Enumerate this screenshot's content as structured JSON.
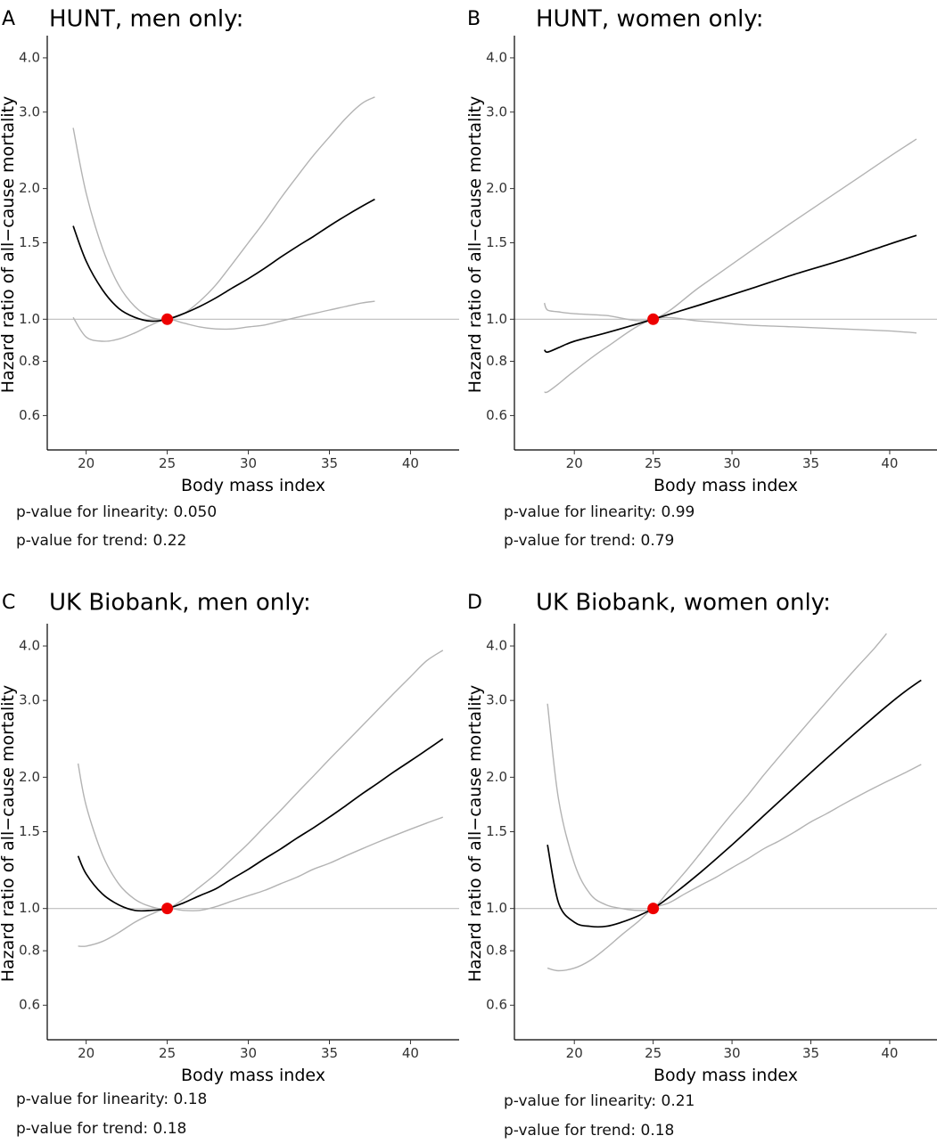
{
  "chart_data": [
    {
      "type": "line",
      "panel_letter": "A",
      "title": "HUNT, men only:",
      "xlabel": "Body mass index",
      "ylabel": "Hazard ratio of all−cause mortality",
      "x_ticks": [
        20,
        25,
        30,
        35,
        40
      ],
      "y_ticks": [
        "0.6",
        "0.8",
        "1.0",
        "1.5",
        "2.0",
        "3.0",
        "4.0"
      ],
      "y_scale": "log",
      "xlim": [
        17.6,
        43.0
      ],
      "ylim": [
        0.5,
        4.5
      ],
      "reference_line_y": 1.0,
      "reference_point": {
        "x": 25,
        "y": 1.0
      },
      "series": [
        {
          "role": "estimate",
          "color": "#000000",
          "x": [
            19.2,
            20,
            21,
            22,
            23,
            24,
            25,
            26,
            27,
            28,
            29,
            30,
            31,
            32,
            33,
            34,
            35,
            36,
            37,
            37.8
          ],
          "y": [
            1.64,
            1.36,
            1.17,
            1.06,
            1.01,
            0.99,
            1.0,
            1.03,
            1.07,
            1.12,
            1.18,
            1.24,
            1.31,
            1.39,
            1.47,
            1.55,
            1.64,
            1.73,
            1.82,
            1.89
          ]
        },
        {
          "role": "upper",
          "color": "#b3b3b3",
          "x": [
            19.2,
            20,
            21,
            22,
            23,
            24,
            25,
            26,
            27,
            28,
            29,
            30,
            31,
            32,
            33,
            34,
            35,
            36,
            37,
            37.8
          ],
          "y": [
            2.76,
            1.95,
            1.46,
            1.2,
            1.07,
            1.01,
            1.0,
            1.03,
            1.1,
            1.2,
            1.34,
            1.5,
            1.68,
            1.9,
            2.13,
            2.38,
            2.63,
            2.9,
            3.14,
            3.25
          ]
        },
        {
          "role": "lower",
          "color": "#b3b3b3",
          "x": [
            19.2,
            20,
            21,
            22,
            23,
            24,
            25,
            26,
            27,
            28,
            29,
            30,
            31,
            32,
            33,
            34,
            35,
            36,
            37,
            37.8
          ],
          "y": [
            1.01,
            0.91,
            0.89,
            0.9,
            0.93,
            0.97,
            1.0,
            0.98,
            0.96,
            0.95,
            0.95,
            0.96,
            0.97,
            0.99,
            1.01,
            1.03,
            1.05,
            1.07,
            1.09,
            1.1
          ]
        }
      ],
      "annotations": [
        "p-value for linearity: 0.050",
        "p-value for trend: 0.22"
      ]
    },
    {
      "type": "line",
      "panel_letter": "B",
      "title": "HUNT, women only:",
      "xlabel": "Body mass index",
      "ylabel": "Hazard ratio of all−cause mortality",
      "x_ticks": [
        20,
        25,
        30,
        35,
        40
      ],
      "y_ticks": [
        "0.6",
        "0.8",
        "1.0",
        "1.5",
        "2.0",
        "3.0",
        "4.0"
      ],
      "y_scale": "log",
      "xlim": [
        16.2,
        43.0
      ],
      "ylim": [
        0.5,
        4.5
      ],
      "reference_line_y": 1.0,
      "reference_point": {
        "x": 25,
        "y": 1.0
      },
      "series": [
        {
          "role": "estimate",
          "color": "#000000",
          "x": [
            18.1,
            18.3,
            19,
            20,
            22,
            25,
            28,
            31,
            34,
            37,
            40,
            41.7
          ],
          "y": [
            0.85,
            0.84,
            0.86,
            0.89,
            0.93,
            1.0,
            1.08,
            1.17,
            1.27,
            1.37,
            1.49,
            1.56
          ]
        },
        {
          "role": "upper",
          "color": "#b3b3b3",
          "x": [
            18.1,
            18.3,
            19,
            20,
            22,
            25,
            28,
            31,
            34,
            37,
            40,
            41.7
          ],
          "y": [
            1.09,
            1.05,
            1.04,
            1.03,
            1.02,
            1.0,
            1.19,
            1.42,
            1.69,
            2.0,
            2.37,
            2.6
          ]
        },
        {
          "role": "lower",
          "color": "#b3b3b3",
          "x": [
            18.1,
            18.3,
            19,
            20,
            22,
            25,
            28,
            31,
            34,
            37,
            40,
            41.7
          ],
          "y": [
            0.68,
            0.68,
            0.71,
            0.76,
            0.86,
            1.0,
            0.99,
            0.97,
            0.96,
            0.95,
            0.94,
            0.93
          ]
        }
      ],
      "annotations": [
        "p-value for linearity: 0.99",
        "p-value for trend: 0.79"
      ]
    },
    {
      "type": "line",
      "panel_letter": "C",
      "title": "UK Biobank, men only:",
      "xlabel": "Body mass index",
      "ylabel": "Hazard ratio of all−cause mortality",
      "x_ticks": [
        20,
        25,
        30,
        35,
        40
      ],
      "y_ticks": [
        "0.6",
        "0.8",
        "1.0",
        "1.5",
        "2.0",
        "3.0",
        "4.0"
      ],
      "y_scale": "log",
      "xlim": [
        17.6,
        43.0
      ],
      "ylim": [
        0.5,
        4.5
      ],
      "reference_line_y": 1.0,
      "reference_point": {
        "x": 25,
        "y": 1.0
      },
      "series": [
        {
          "role": "estimate",
          "color": "#000000",
          "x": [
            19.5,
            20,
            21,
            22,
            23,
            24,
            25,
            26,
            27,
            28,
            29,
            30,
            31,
            32,
            33,
            34,
            35,
            36,
            37,
            38,
            39,
            40,
            41,
            42
          ],
          "y": [
            1.32,
            1.2,
            1.08,
            1.02,
            0.99,
            0.99,
            1.0,
            1.03,
            1.07,
            1.11,
            1.17,
            1.23,
            1.3,
            1.37,
            1.45,
            1.53,
            1.62,
            1.72,
            1.83,
            1.94,
            2.06,
            2.18,
            2.31,
            2.45
          ]
        },
        {
          "role": "upper",
          "color": "#b3b3b3",
          "x": [
            19.5,
            20,
            21,
            22,
            23,
            24,
            25,
            26,
            27,
            28,
            29,
            30,
            31,
            32,
            33,
            34,
            35,
            36,
            37,
            38,
            39,
            40,
            41,
            42
          ],
          "y": [
            2.15,
            1.72,
            1.33,
            1.14,
            1.05,
            1.01,
            1.0,
            1.05,
            1.12,
            1.2,
            1.3,
            1.41,
            1.54,
            1.68,
            1.84,
            2.01,
            2.2,
            2.4,
            2.62,
            2.86,
            3.12,
            3.4,
            3.7,
            3.91
          ]
        },
        {
          "role": "lower",
          "color": "#b3b3b3",
          "x": [
            19.5,
            20,
            21,
            22,
            23,
            24,
            25,
            26,
            27,
            28,
            29,
            30,
            31,
            32,
            33,
            34,
            35,
            36,
            37,
            38,
            39,
            40,
            41,
            42
          ],
          "y": [
            0.82,
            0.82,
            0.84,
            0.88,
            0.93,
            0.97,
            1.0,
            0.99,
            0.99,
            1.01,
            1.04,
            1.07,
            1.1,
            1.14,
            1.18,
            1.23,
            1.27,
            1.32,
            1.37,
            1.42,
            1.47,
            1.52,
            1.57,
            1.62
          ]
        }
      ],
      "annotations": [
        "p-value for linearity: 0.18",
        "p-value for trend: 0.18"
      ]
    },
    {
      "type": "line",
      "panel_letter": "D",
      "title": "UK Biobank, women only:",
      "xlabel": "Body mass index",
      "ylabel": "Hazard ratio of all−cause mortality",
      "x_ticks": [
        20,
        25,
        30,
        35,
        40
      ],
      "y_ticks": [
        "0.6",
        "0.8",
        "1.0",
        "1.5",
        "2.0",
        "3.0",
        "4.0"
      ],
      "y_scale": "log",
      "xlim": [
        16.2,
        43.0
      ],
      "ylim": [
        0.5,
        4.5
      ],
      "reference_line_y": 1.0,
      "reference_point": {
        "x": 25,
        "y": 1.0
      },
      "series": [
        {
          "role": "estimate",
          "color": "#000000",
          "x": [
            18.3,
            19,
            20,
            21,
            22,
            23,
            24,
            25,
            26,
            27,
            28,
            29,
            30,
            31,
            32,
            33,
            34,
            35,
            36,
            37,
            38,
            39,
            40,
            41,
            42
          ],
          "y": [
            1.4,
            1.03,
            0.93,
            0.91,
            0.91,
            0.93,
            0.96,
            1.0,
            1.06,
            1.13,
            1.21,
            1.3,
            1.4,
            1.51,
            1.63,
            1.76,
            1.9,
            2.05,
            2.21,
            2.38,
            2.56,
            2.75,
            2.95,
            3.15,
            3.34
          ]
        },
        {
          "role": "upper",
          "color": "#b3b3b3",
          "x": [
            18.3,
            19,
            20,
            21,
            22,
            23,
            24,
            25,
            26,
            27,
            28,
            29,
            30,
            31,
            32,
            33,
            34,
            35,
            36,
            37,
            38,
            39,
            39.8
          ],
          "y": [
            2.95,
            1.78,
            1.27,
            1.08,
            1.02,
            1.0,
            0.99,
            1.0,
            1.1,
            1.21,
            1.34,
            1.49,
            1.65,
            1.82,
            2.02,
            2.23,
            2.46,
            2.71,
            2.98,
            3.28,
            3.6,
            3.94,
            4.27
          ]
        },
        {
          "role": "lower",
          "color": "#b3b3b3",
          "x": [
            18.3,
            19,
            20,
            21,
            22,
            23,
            24,
            25,
            26,
            27,
            28,
            29,
            30,
            31,
            32,
            33,
            34,
            35,
            36,
            37,
            38,
            39,
            40,
            41,
            42
          ],
          "y": [
            0.73,
            0.72,
            0.73,
            0.76,
            0.81,
            0.87,
            0.93,
            1.0,
            1.03,
            1.08,
            1.13,
            1.18,
            1.24,
            1.3,
            1.37,
            1.43,
            1.5,
            1.58,
            1.65,
            1.73,
            1.81,
            1.89,
            1.97,
            2.05,
            2.14
          ]
        }
      ],
      "annotations": [
        "p-value for linearity: 0.21",
        "p-value for trend: 0.18"
      ]
    }
  ]
}
